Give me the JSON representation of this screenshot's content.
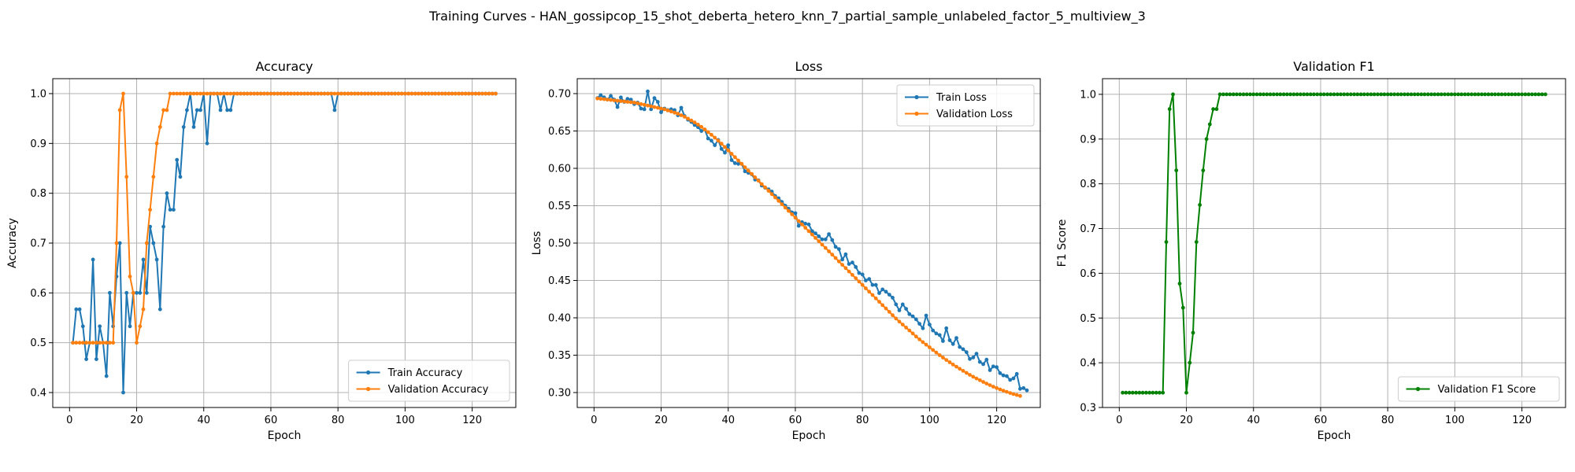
{
  "figure_title": "Training Curves - HAN_gossipcop_15_shot_deberta_hetero_knn_7_partial_sample_unlabeled_factor_5_multiview_3",
  "colors": {
    "train": "#1f77b4",
    "validation": "#ff7f0e",
    "f1": "#008000"
  },
  "chart_data": [
    {
      "type": "line",
      "title": "Accuracy",
      "xlabel": "Epoch",
      "ylabel": "Accuracy",
      "xlim": [
        -5,
        133
      ],
      "ylim": [
        0.37,
        1.03
      ],
      "xticks": [
        0,
        20,
        40,
        60,
        80,
        100,
        120
      ],
      "yticks": [
        0.4,
        0.5,
        0.6,
        0.7,
        0.8,
        0.9,
        1.0
      ],
      "ytick_labels": [
        "0.4",
        "0.5",
        "0.6",
        "0.7",
        "0.8",
        "0.9",
        "1.0"
      ],
      "legend_loc": "lower-right",
      "grid": true,
      "series": [
        {
          "name": "Train Accuracy",
          "color": "#1f77b4",
          "x_start": 1,
          "values": [
            0.5,
            0.567,
            0.567,
            0.533,
            0.467,
            0.5,
            0.667,
            0.467,
            0.533,
            0.5,
            0.433,
            0.6,
            0.533,
            0.633,
            0.7,
            0.4,
            0.6,
            0.533,
            0.6,
            0.6,
            0.6,
            0.667,
            0.6,
            0.733,
            0.7,
            0.667,
            0.567,
            0.733,
            0.8,
            0.767,
            0.767,
            0.867,
            0.833,
            0.933,
            0.967,
            1.0,
            0.933,
            0.967,
            0.967,
            1.0,
            0.9,
            1.0,
            1.0,
            1.0,
            0.967,
            1.0,
            0.967,
            0.967,
            1.0,
            1.0,
            1.0,
            1.0,
            1.0,
            1.0,
            1.0,
            1.0,
            1.0,
            1.0,
            1.0,
            1.0,
            1.0,
            1.0,
            1.0,
            1.0,
            1.0,
            1.0,
            1.0,
            1.0,
            1.0,
            1.0,
            1.0,
            1.0,
            1.0,
            1.0,
            1.0,
            1.0,
            1.0,
            1.0,
            0.967,
            1.0,
            1.0,
            1.0,
            1.0,
            1.0,
            1.0,
            1.0,
            1.0,
            1.0,
            1.0,
            1.0,
            1.0,
            1.0,
            1.0,
            1.0,
            1.0,
            1.0,
            1.0,
            1.0,
            1.0,
            1.0,
            1.0,
            1.0,
            1.0,
            1.0,
            1.0,
            1.0,
            1.0,
            1.0,
            1.0,
            1.0,
            1.0,
            1.0,
            1.0,
            1.0,
            1.0,
            1.0,
            1.0,
            1.0,
            1.0,
            1.0,
            1.0,
            1.0,
            1.0,
            1.0,
            1.0,
            1.0,
            1.0
          ]
        },
        {
          "name": "Validation Accuracy",
          "color": "#ff7f0e",
          "x_start": 1,
          "values": [
            0.5,
            0.5,
            0.5,
            0.5,
            0.5,
            0.5,
            0.5,
            0.5,
            0.5,
            0.5,
            0.5,
            0.5,
            0.5,
            0.7,
            0.967,
            1.0,
            0.833,
            0.633,
            0.6,
            0.5,
            0.533,
            0.567,
            0.7,
            0.767,
            0.833,
            0.9,
            0.933,
            0.967,
            0.967,
            1.0,
            1.0,
            1.0,
            1.0,
            1.0,
            1.0,
            1.0,
            1.0,
            1.0,
            1.0,
            1.0,
            1.0,
            1.0,
            1.0,
            1.0,
            1.0,
            1.0,
            1.0,
            1.0,
            1.0,
            1.0,
            1.0,
            1.0,
            1.0,
            1.0,
            1.0,
            1.0,
            1.0,
            1.0,
            1.0,
            1.0,
            1.0,
            1.0,
            1.0,
            1.0,
            1.0,
            1.0,
            1.0,
            1.0,
            1.0,
            1.0,
            1.0,
            1.0,
            1.0,
            1.0,
            1.0,
            1.0,
            1.0,
            1.0,
            1.0,
            1.0,
            1.0,
            1.0,
            1.0,
            1.0,
            1.0,
            1.0,
            1.0,
            1.0,
            1.0,
            1.0,
            1.0,
            1.0,
            1.0,
            1.0,
            1.0,
            1.0,
            1.0,
            1.0,
            1.0,
            1.0,
            1.0,
            1.0,
            1.0,
            1.0,
            1.0,
            1.0,
            1.0,
            1.0,
            1.0,
            1.0,
            1.0,
            1.0,
            1.0,
            1.0,
            1.0,
            1.0,
            1.0,
            1.0,
            1.0,
            1.0,
            1.0,
            1.0,
            1.0,
            1.0,
            1.0,
            1.0,
            1.0
          ]
        }
      ]
    },
    {
      "type": "line",
      "title": "Loss",
      "xlabel": "Epoch",
      "ylabel": "Loss",
      "xlim": [
        -5,
        133
      ],
      "ylim": [
        0.28,
        0.72
      ],
      "xticks": [
        0,
        20,
        40,
        60,
        80,
        100,
        120
      ],
      "yticks": [
        0.3,
        0.35,
        0.4,
        0.45,
        0.5,
        0.55,
        0.6,
        0.65,
        0.7
      ],
      "ytick_labels": [
        "0.30",
        "0.35",
        "0.40",
        "0.45",
        "0.50",
        "0.55",
        "0.60",
        "0.65",
        "0.70"
      ],
      "legend_loc": "top-right",
      "grid": true,
      "series": [
        {
          "name": "Train Loss",
          "color": "#1f77b4",
          "x_start": 1,
          "values": [
            0.694,
            0.698,
            0.695,
            0.692,
            0.697,
            0.692,
            0.682,
            0.695,
            0.689,
            0.693,
            0.692,
            0.686,
            0.688,
            0.68,
            0.679,
            0.703,
            0.679,
            0.694,
            0.689,
            0.675,
            0.68,
            0.678,
            0.679,
            0.678,
            0.671,
            0.681,
            0.67,
            0.665,
            0.662,
            0.658,
            0.655,
            0.65,
            0.652,
            0.64,
            0.637,
            0.631,
            0.638,
            0.626,
            0.621,
            0.631,
            0.611,
            0.607,
            0.606,
            0.606,
            0.596,
            0.594,
            0.592,
            0.585,
            0.584,
            0.577,
            0.574,
            0.572,
            0.569,
            0.563,
            0.56,
            0.555,
            0.55,
            0.546,
            0.541,
            0.54,
            0.523,
            0.528,
            0.526,
            0.525,
            0.516,
            0.513,
            0.509,
            0.505,
            0.505,
            0.512,
            0.504,
            0.495,
            0.492,
            0.478,
            0.485,
            0.472,
            0.474,
            0.468,
            0.46,
            0.458,
            0.45,
            0.452,
            0.444,
            0.444,
            0.433,
            0.438,
            0.435,
            0.431,
            0.427,
            0.418,
            0.41,
            0.418,
            0.412,
            0.405,
            0.402,
            0.398,
            0.392,
            0.386,
            0.403,
            0.391,
            0.383,
            0.379,
            0.377,
            0.369,
            0.386,
            0.37,
            0.365,
            0.373,
            0.361,
            0.358,
            0.354,
            0.345,
            0.347,
            0.352,
            0.341,
            0.338,
            0.344,
            0.33,
            0.335,
            0.334,
            0.326,
            0.323,
            0.322,
            0.317,
            0.319,
            0.325,
            0.305,
            0.306,
            0.303
          ]
        },
        {
          "name": "Validation Loss",
          "color": "#ff7f0e",
          "x_start": 1,
          "values": [
            0.6935,
            0.693,
            0.6925,
            0.692,
            0.6915,
            0.691,
            0.6905,
            0.69,
            0.6895,
            0.689,
            0.6885,
            0.688,
            0.687,
            0.686,
            0.685,
            0.684,
            0.683,
            0.682,
            0.681,
            0.68,
            0.679,
            0.6775,
            0.676,
            0.6745,
            0.673,
            0.671,
            0.669,
            0.6665,
            0.664,
            0.6615,
            0.6585,
            0.6555,
            0.652,
            0.6485,
            0.645,
            0.641,
            0.637,
            0.633,
            0.6285,
            0.624,
            0.6195,
            0.615,
            0.6105,
            0.606,
            0.6015,
            0.597,
            0.5925,
            0.588,
            0.5835,
            0.579,
            0.5745,
            0.57,
            0.5655,
            0.561,
            0.5565,
            0.552,
            0.5475,
            0.543,
            0.5385,
            0.534,
            0.5295,
            0.525,
            0.5205,
            0.516,
            0.5115,
            0.507,
            0.5025,
            0.498,
            0.4935,
            0.489,
            0.4845,
            0.48,
            0.4755,
            0.471,
            0.4665,
            0.462,
            0.4575,
            0.453,
            0.4485,
            0.444,
            0.4395,
            0.435,
            0.4305,
            0.426,
            0.4215,
            0.417,
            0.4125,
            0.408,
            0.4035,
            0.399,
            0.395,
            0.391,
            0.387,
            0.383,
            0.379,
            0.375,
            0.3712,
            0.3675,
            0.364,
            0.3605,
            0.357,
            0.3535,
            0.35,
            0.3468,
            0.3436,
            0.3405,
            0.3375,
            0.3346,
            0.3318,
            0.329,
            0.3263,
            0.3237,
            0.3212,
            0.3188,
            0.3165,
            0.3142,
            0.312,
            0.3099,
            0.3079,
            0.306,
            0.3042,
            0.3025,
            0.3009,
            0.2994,
            0.298,
            0.2967,
            0.2955
          ]
        }
      ]
    },
    {
      "type": "line",
      "title": "Validation F1",
      "xlabel": "Epoch",
      "ylabel": "F1 Score",
      "xlim": [
        -5,
        133
      ],
      "ylim": [
        0.3,
        1.035
      ],
      "xticks": [
        0,
        20,
        40,
        60,
        80,
        100,
        120
      ],
      "yticks": [
        0.3,
        0.4,
        0.5,
        0.6,
        0.7,
        0.8,
        0.9,
        1.0
      ],
      "ytick_labels": [
        "0.3",
        "0.4",
        "0.5",
        "0.6",
        "0.7",
        "0.8",
        "0.9",
        "1.0"
      ],
      "legend_loc": "lower-right",
      "grid": true,
      "series": [
        {
          "name": "Validation F1 Score",
          "color": "#008000",
          "x_start": 1,
          "values": [
            0.333,
            0.333,
            0.333,
            0.333,
            0.333,
            0.333,
            0.333,
            0.333,
            0.333,
            0.333,
            0.333,
            0.333,
            0.333,
            0.67,
            0.967,
            1.0,
            0.83,
            0.577,
            0.523,
            0.333,
            0.4,
            0.467,
            0.67,
            0.753,
            0.83,
            0.9,
            0.933,
            0.967,
            0.967,
            1.0,
            1.0,
            1.0,
            1.0,
            1.0,
            1.0,
            1.0,
            1.0,
            1.0,
            1.0,
            1.0,
            1.0,
            1.0,
            1.0,
            1.0,
            1.0,
            1.0,
            1.0,
            1.0,
            1.0,
            1.0,
            1.0,
            1.0,
            1.0,
            1.0,
            1.0,
            1.0,
            1.0,
            1.0,
            1.0,
            1.0,
            1.0,
            1.0,
            1.0,
            1.0,
            1.0,
            1.0,
            1.0,
            1.0,
            1.0,
            1.0,
            1.0,
            1.0,
            1.0,
            1.0,
            1.0,
            1.0,
            1.0,
            1.0,
            1.0,
            1.0,
            1.0,
            1.0,
            1.0,
            1.0,
            1.0,
            1.0,
            1.0,
            1.0,
            1.0,
            1.0,
            1.0,
            1.0,
            1.0,
            1.0,
            1.0,
            1.0,
            1.0,
            1.0,
            1.0,
            1.0,
            1.0,
            1.0,
            1.0,
            1.0,
            1.0,
            1.0,
            1.0,
            1.0,
            1.0,
            1.0,
            1.0,
            1.0,
            1.0,
            1.0,
            1.0,
            1.0,
            1.0,
            1.0,
            1.0,
            1.0,
            1.0,
            1.0,
            1.0,
            1.0,
            1.0,
            1.0,
            1.0
          ]
        }
      ]
    }
  ]
}
